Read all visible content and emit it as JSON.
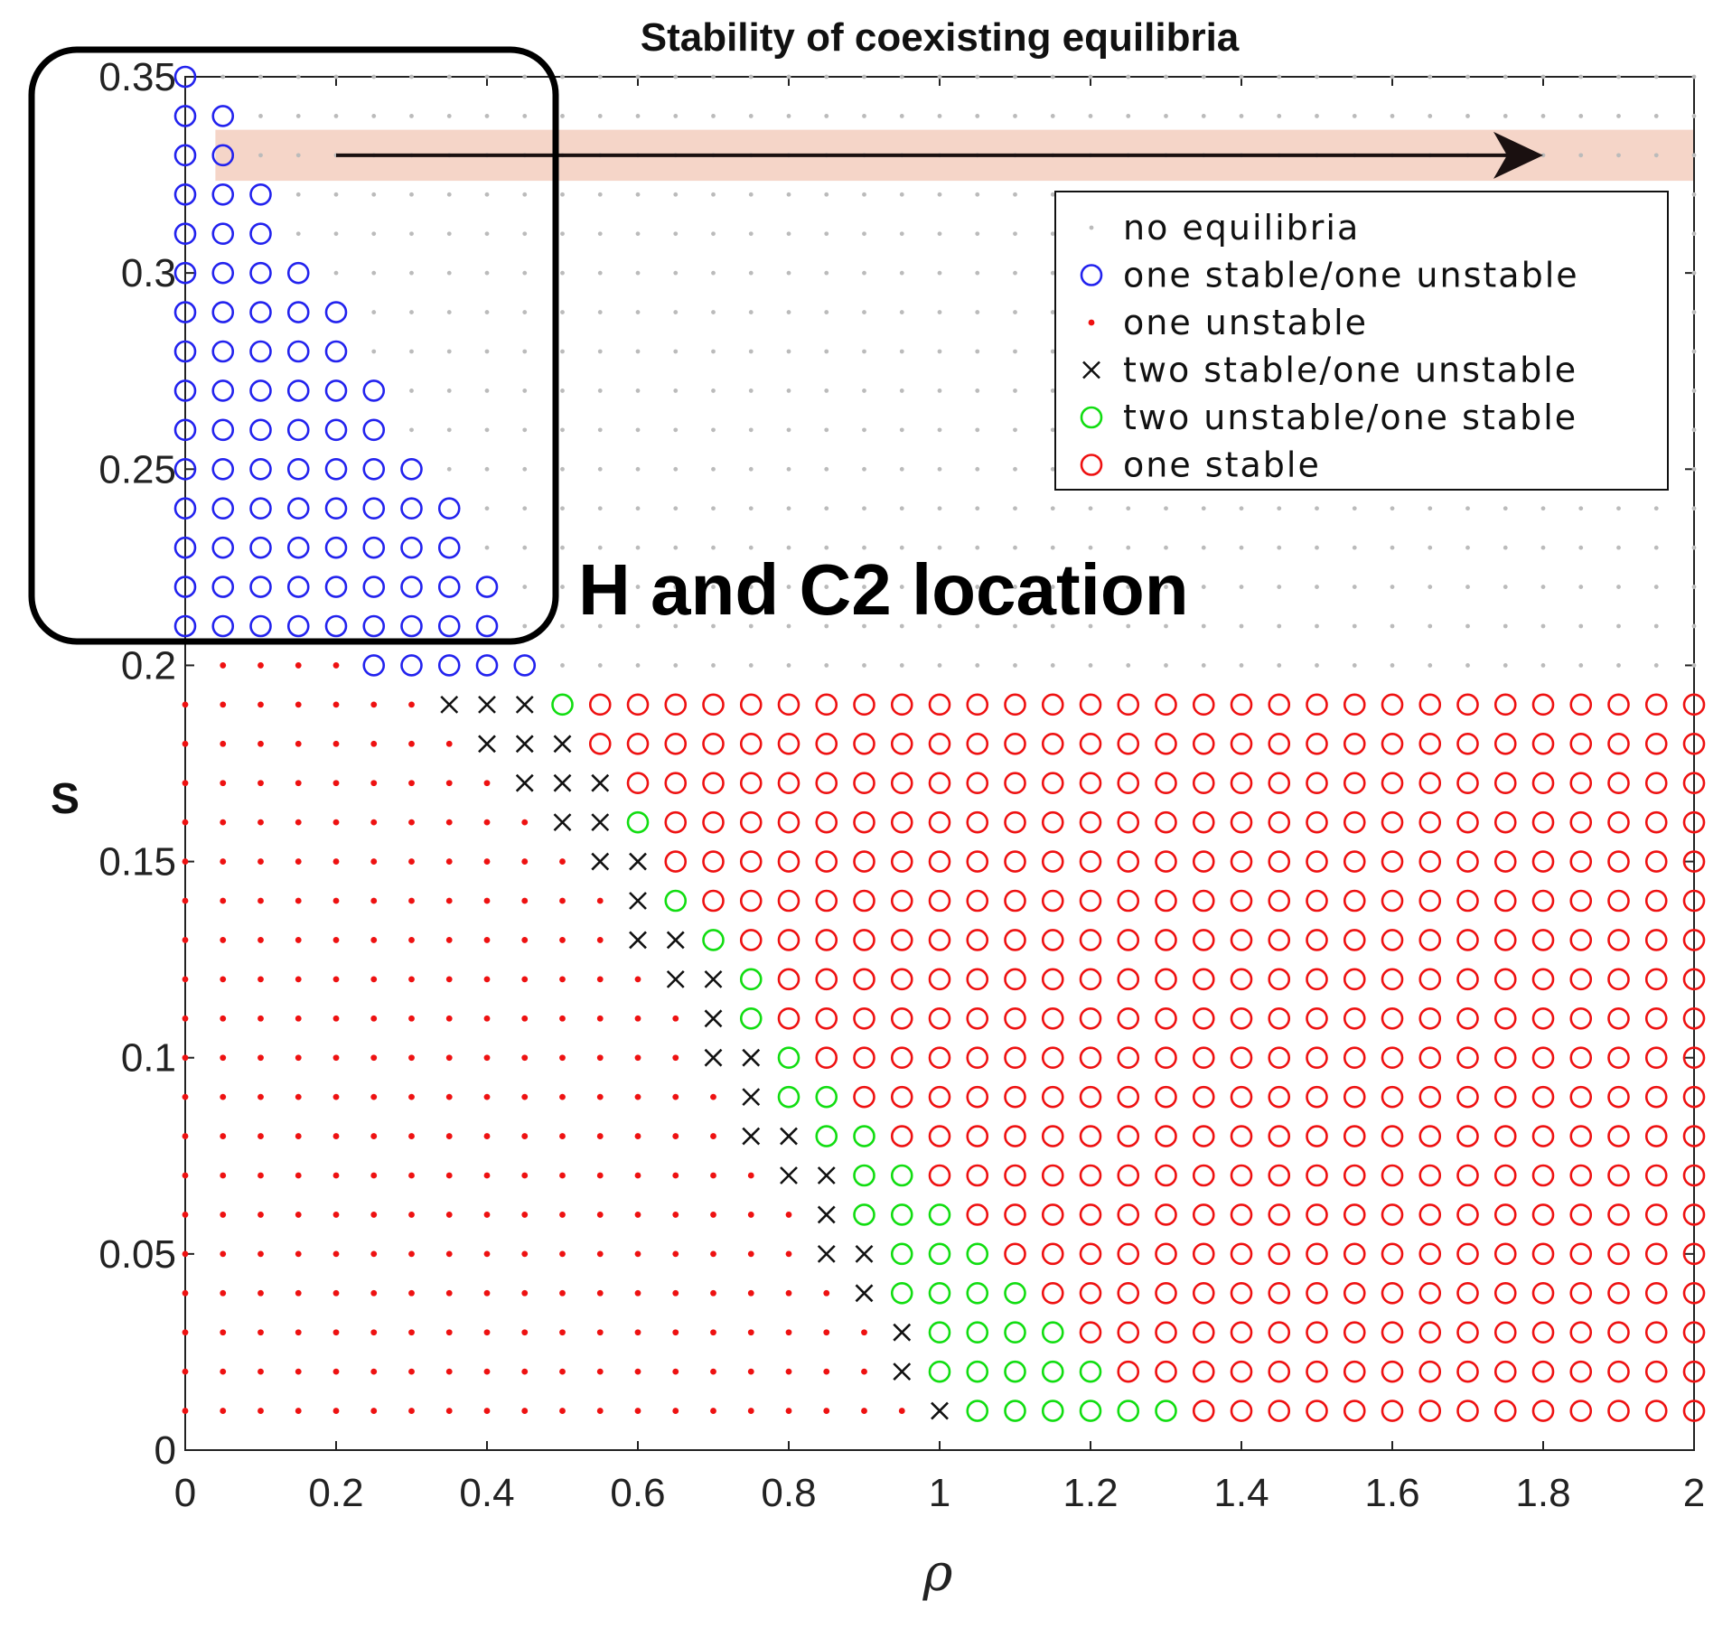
{
  "chart_data": {
    "type": "scatter",
    "title": "Stability of coexisting equilibria",
    "xlabel": "ρ",
    "ylabel": "S",
    "xlim": [
      0,
      2
    ],
    "ylim": [
      0,
      0.35
    ],
    "xticks": [
      0,
      0.2,
      0.4,
      0.6,
      0.8,
      1,
      1.2,
      1.4,
      1.6,
      1.8,
      2
    ],
    "yticks": [
      0,
      0.05,
      0.1,
      0.15,
      0.2,
      0.25,
      0.3,
      0.35
    ],
    "xtick_labels": [
      "0",
      "0.2",
      "0.4",
      "0.6",
      "0.8",
      "1",
      "1.2",
      "1.4",
      "1.6",
      "1.8",
      "2"
    ],
    "ytick_labels": [
      "0",
      "0.05",
      "0.1",
      "0.15",
      "0.2",
      "0.25",
      "0.3",
      "0.35"
    ],
    "grid": {
      "x_step": 0.05,
      "y_step": 0.01,
      "x_count": 41,
      "y_min_index": 1,
      "y_max_index": 35
    },
    "legend_position": "top-right",
    "categories": [
      {
        "key": "none",
        "label": "no equilibria",
        "marker": "dot",
        "color": "#bbbbbb"
      },
      {
        "key": "blue",
        "label": "one stable/one unstable",
        "marker": "circle",
        "color": "#2222ee"
      },
      {
        "key": "reddot",
        "label": "one unstable",
        "marker": "dot",
        "color": "#ee1111"
      },
      {
        "key": "x",
        "label": "two stable/one unstable",
        "marker": "cross",
        "color": "#111111"
      },
      {
        "key": "green",
        "label": "two unstable/one stable",
        "marker": "circle",
        "color": "#11dd11"
      },
      {
        "key": "red",
        "label": "one stable",
        "marker": "circle",
        "color": "#ee1111"
      }
    ],
    "rows": [
      {
        "s": 0.35,
        "segments": [
          [
            "blue",
            0,
            0
          ],
          [
            "none",
            1,
            40
          ]
        ]
      },
      {
        "s": 0.34,
        "segments": [
          [
            "blue",
            0,
            1
          ],
          [
            "none",
            2,
            40
          ]
        ]
      },
      {
        "s": 0.33,
        "segments": [
          [
            "blue",
            0,
            1
          ],
          [
            "none",
            2,
            40
          ]
        ]
      },
      {
        "s": 0.32,
        "segments": [
          [
            "blue",
            0,
            2
          ],
          [
            "none",
            3,
            40
          ]
        ]
      },
      {
        "s": 0.31,
        "segments": [
          [
            "blue",
            0,
            2
          ],
          [
            "none",
            3,
            40
          ]
        ]
      },
      {
        "s": 0.3,
        "segments": [
          [
            "blue",
            0,
            3
          ],
          [
            "none",
            4,
            40
          ]
        ]
      },
      {
        "s": 0.29,
        "segments": [
          [
            "blue",
            0,
            4
          ],
          [
            "none",
            5,
            40
          ]
        ]
      },
      {
        "s": 0.28,
        "segments": [
          [
            "blue",
            0,
            4
          ],
          [
            "none",
            5,
            40
          ]
        ]
      },
      {
        "s": 0.27,
        "segments": [
          [
            "blue",
            0,
            5
          ],
          [
            "none",
            6,
            40
          ]
        ]
      },
      {
        "s": 0.26,
        "segments": [
          [
            "blue",
            0,
            5
          ],
          [
            "none",
            6,
            40
          ]
        ]
      },
      {
        "s": 0.25,
        "segments": [
          [
            "blue",
            0,
            6
          ],
          [
            "none",
            7,
            40
          ]
        ]
      },
      {
        "s": 0.24,
        "segments": [
          [
            "blue",
            0,
            7
          ],
          [
            "none",
            8,
            40
          ]
        ]
      },
      {
        "s": 0.23,
        "segments": [
          [
            "blue",
            0,
            7
          ],
          [
            "none",
            8,
            40
          ]
        ]
      },
      {
        "s": 0.22,
        "segments": [
          [
            "blue",
            0,
            8
          ],
          [
            "none",
            9,
            40
          ]
        ]
      },
      {
        "s": 0.21,
        "segments": [
          [
            "blue",
            0,
            8
          ],
          [
            "none",
            9,
            40
          ]
        ]
      },
      {
        "s": 0.2,
        "segments": [
          [
            "reddot",
            1,
            4
          ],
          [
            "blue",
            5,
            9
          ],
          [
            "none",
            10,
            40
          ]
        ]
      },
      {
        "s": 0.19,
        "segments": [
          [
            "reddot",
            0,
            6
          ],
          [
            "x",
            7,
            9
          ],
          [
            "green",
            10,
            10
          ],
          [
            "red",
            11,
            40
          ]
        ]
      },
      {
        "s": 0.18,
        "segments": [
          [
            "reddot",
            0,
            7
          ],
          [
            "x",
            8,
            10
          ],
          [
            "red",
            11,
            40
          ]
        ]
      },
      {
        "s": 0.17,
        "segments": [
          [
            "reddot",
            0,
            8
          ],
          [
            "x",
            9,
            11
          ],
          [
            "red",
            12,
            40
          ]
        ]
      },
      {
        "s": 0.16,
        "segments": [
          [
            "reddot",
            0,
            9
          ],
          [
            "x",
            10,
            11
          ],
          [
            "green",
            12,
            12
          ],
          [
            "red",
            13,
            40
          ]
        ]
      },
      {
        "s": 0.15,
        "segments": [
          [
            "reddot",
            0,
            10
          ],
          [
            "x",
            11,
            12
          ],
          [
            "red",
            13,
            40
          ]
        ]
      },
      {
        "s": 0.14,
        "segments": [
          [
            "reddot",
            0,
            11
          ],
          [
            "x",
            12,
            12
          ],
          [
            "green",
            13,
            13
          ],
          [
            "red",
            14,
            40
          ]
        ]
      },
      {
        "s": 0.13,
        "segments": [
          [
            "reddot",
            0,
            11
          ],
          [
            "x",
            12,
            13
          ],
          [
            "green",
            14,
            14
          ],
          [
            "red",
            15,
            40
          ]
        ]
      },
      {
        "s": 0.12,
        "segments": [
          [
            "reddot",
            0,
            12
          ],
          [
            "x",
            13,
            14
          ],
          [
            "green",
            15,
            15
          ],
          [
            "red",
            16,
            40
          ]
        ]
      },
      {
        "s": 0.11,
        "segments": [
          [
            "reddot",
            0,
            13
          ],
          [
            "x",
            14,
            14
          ],
          [
            "green",
            15,
            15
          ],
          [
            "red",
            16,
            40
          ]
        ]
      },
      {
        "s": 0.1,
        "segments": [
          [
            "reddot",
            0,
            13
          ],
          [
            "x",
            14,
            15
          ],
          [
            "green",
            16,
            16
          ],
          [
            "red",
            17,
            40
          ]
        ]
      },
      {
        "s": 0.09,
        "segments": [
          [
            "reddot",
            0,
            14
          ],
          [
            "x",
            15,
            15
          ],
          [
            "green",
            16,
            17
          ],
          [
            "red",
            18,
            40
          ]
        ]
      },
      {
        "s": 0.08,
        "segments": [
          [
            "reddot",
            0,
            14
          ],
          [
            "x",
            15,
            16
          ],
          [
            "green",
            17,
            18
          ],
          [
            "red",
            19,
            40
          ]
        ]
      },
      {
        "s": 0.07,
        "segments": [
          [
            "reddot",
            0,
            15
          ],
          [
            "x",
            16,
            17
          ],
          [
            "green",
            18,
            19
          ],
          [
            "red",
            20,
            40
          ]
        ]
      },
      {
        "s": 0.06,
        "segments": [
          [
            "reddot",
            0,
            16
          ],
          [
            "x",
            17,
            17
          ],
          [
            "green",
            18,
            20
          ],
          [
            "red",
            21,
            40
          ]
        ]
      },
      {
        "s": 0.05,
        "segments": [
          [
            "reddot",
            0,
            16
          ],
          [
            "x",
            17,
            18
          ],
          [
            "green",
            19,
            21
          ],
          [
            "red",
            22,
            40
          ]
        ]
      },
      {
        "s": 0.04,
        "segments": [
          [
            "reddot",
            0,
            17
          ],
          [
            "x",
            18,
            18
          ],
          [
            "green",
            19,
            22
          ],
          [
            "red",
            23,
            40
          ]
        ]
      },
      {
        "s": 0.03,
        "segments": [
          [
            "reddot",
            0,
            18
          ],
          [
            "x",
            19,
            19
          ],
          [
            "green",
            20,
            23
          ],
          [
            "red",
            24,
            40
          ]
        ]
      },
      {
        "s": 0.02,
        "segments": [
          [
            "reddot",
            0,
            18
          ],
          [
            "x",
            19,
            19
          ],
          [
            "green",
            20,
            24
          ],
          [
            "red",
            25,
            40
          ]
        ]
      },
      {
        "s": 0.01,
        "segments": [
          [
            "reddot",
            0,
            19
          ],
          [
            "x",
            20,
            20
          ],
          [
            "green",
            21,
            26
          ],
          [
            "red",
            27,
            40
          ]
        ]
      }
    ],
    "annotations": {
      "label": "H and C2 location",
      "highlight_band_s": 0.33,
      "arrow_from_rho": 0.2,
      "arrow_to_rho": 1.8,
      "region_box_rho": [
        0,
        0.48
      ],
      "region_box_s": [
        0.21,
        0.35
      ]
    },
    "colors": {
      "axis": "#222222",
      "band": "#f5d5c8",
      "arrow": "#1a1010",
      "box": "#000000"
    }
  }
}
